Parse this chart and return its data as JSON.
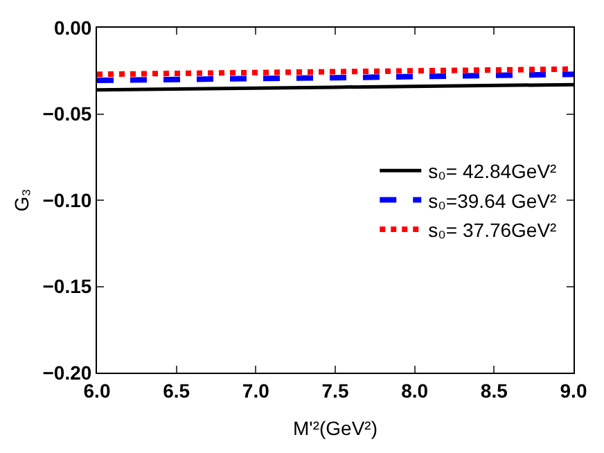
{
  "chart_data": {
    "type": "line",
    "xlabel": "M'²(GeV²)",
    "ylabel": "G₃",
    "xlim": [
      6.0,
      9.0
    ],
    "ylim": [
      -0.2,
      0.0
    ],
    "xticks": [
      {
        "value": 6,
        "label": "6.0"
      },
      {
        "value": 6.5,
        "label": "6.5"
      },
      {
        "value": 7,
        "label": "7.0"
      },
      {
        "value": 7.5,
        "label": "7.5"
      },
      {
        "value": 8,
        "label": "8.0"
      },
      {
        "value": 8.5,
        "label": "8.5"
      },
      {
        "value": 9,
        "label": "9.0"
      }
    ],
    "yticks": [
      {
        "value": -0.2,
        "label": "−0.20"
      },
      {
        "value": -0.15,
        "label": "−0.15"
      },
      {
        "value": -0.1,
        "label": "−0.10"
      },
      {
        "value": -0.05,
        "label": "−0.05"
      },
      {
        "value": 0,
        "label": "0.00"
      }
    ],
    "x": [
      6.0,
      7.5,
      9.0
    ],
    "series": [
      {
        "name": "s₀= 42.84GeV²",
        "color": "#000000",
        "line_style": "solid",
        "values": [
          -0.036,
          -0.0345,
          -0.033
        ]
      },
      {
        "name": "s₀=39.64 GeV²",
        "color": "#0000ff",
        "line_style": "dashed",
        "values": [
          -0.0305,
          -0.029,
          -0.027
        ]
      },
      {
        "name": "s₀= 37.76GeV²",
        "color": "#ff0000",
        "line_style": "dotted",
        "values": [
          -0.027,
          -0.0255,
          -0.024
        ]
      }
    ],
    "legend": "right",
    "marker": "none"
  }
}
